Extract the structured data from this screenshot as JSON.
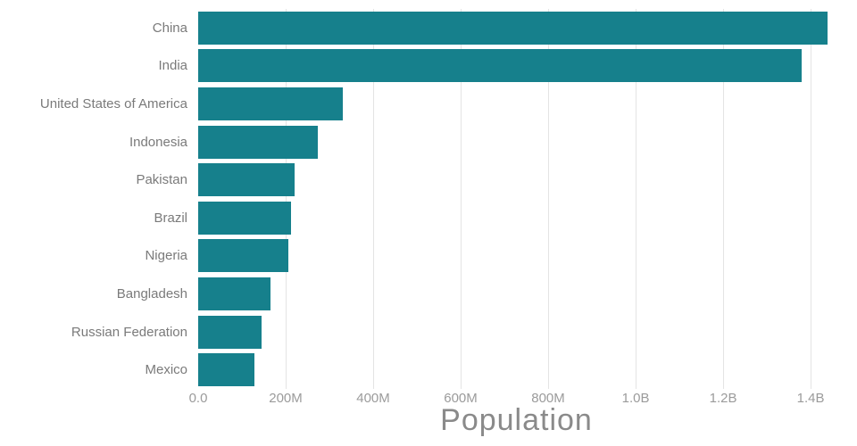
{
  "chart_data": {
    "type": "bar",
    "orientation": "horizontal",
    "title": "",
    "xlabel": "Population",
    "ylabel": "",
    "categories": [
      "China",
      "India",
      "United States of America",
      "Indonesia",
      "Pakistan",
      "Brazil",
      "Nigeria",
      "Bangladesh",
      "Russian Federation",
      "Mexico"
    ],
    "values": [
      1439.3,
      1380.0,
      331.0,
      273.5,
      220.9,
      212.6,
      206.1,
      164.7,
      145.9,
      128.9
    ],
    "values_unit": "millions",
    "xlim": [
      0,
      1455
    ],
    "xticks": [
      {
        "value": 0,
        "label": "0.0"
      },
      {
        "value": 200,
        "label": "200M"
      },
      {
        "value": 400,
        "label": "400M"
      },
      {
        "value": 600,
        "label": "600M"
      },
      {
        "value": 800,
        "label": "800M"
      },
      {
        "value": 1000,
        "label": "1.0B"
      },
      {
        "value": 1200,
        "label": "1.2B"
      },
      {
        "value": 1400,
        "label": "1.4B"
      }
    ],
    "bar_color": "#16808c",
    "grid": true,
    "legend": "none"
  }
}
